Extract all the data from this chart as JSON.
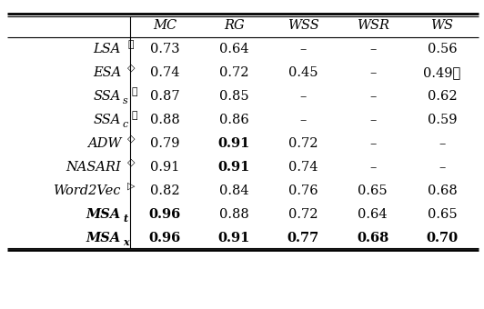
{
  "col_headers": [
    "",
    "MC",
    "RG",
    "WSS",
    "WSR",
    "WS"
  ],
  "rows": [
    {
      "label_base": "LSA",
      "label_sup": "⋆",
      "label_sub": "",
      "label_bold": false,
      "values": [
        "0.73",
        "0.64",
        "–",
        "–",
        "0.56"
      ],
      "val_bold": [
        false,
        false,
        false,
        false,
        false
      ]
    },
    {
      "label_base": "ESA",
      "label_sup": "◇",
      "label_sub": "",
      "label_bold": false,
      "values": [
        "0.74",
        "0.72",
        "0.45",
        "–",
        "0.49⋆"
      ],
      "val_bold": [
        false,
        false,
        false,
        false,
        false
      ]
    },
    {
      "label_base": "SSA",
      "label_sup": "⋆",
      "label_sub": "s",
      "label_bold": false,
      "values": [
        "0.87",
        "0.85",
        "–",
        "–",
        "0.62"
      ],
      "val_bold": [
        false,
        false,
        false,
        false,
        false
      ]
    },
    {
      "label_base": "SSA",
      "label_sup": "⋆",
      "label_sub": "c",
      "label_bold": false,
      "values": [
        "0.88",
        "0.86",
        "–",
        "–",
        "0.59"
      ],
      "val_bold": [
        false,
        false,
        false,
        false,
        false
      ]
    },
    {
      "label_base": "ADW",
      "label_sup": "◇",
      "label_sub": "",
      "label_bold": false,
      "values": [
        "0.79",
        "0.91",
        "0.72",
        "–",
        "–"
      ],
      "val_bold": [
        false,
        true,
        false,
        false,
        false
      ]
    },
    {
      "label_base": "NASARI",
      "label_sup": "◇",
      "label_sub": "",
      "label_bold": false,
      "values": [
        "0.91",
        "0.91",
        "0.74",
        "–",
        "–"
      ],
      "val_bold": [
        false,
        true,
        false,
        false,
        false
      ]
    },
    {
      "label_base": "Word2Vec",
      "label_sup": "▷",
      "label_sub": "",
      "label_bold": false,
      "values": [
        "0.82",
        "0.84",
        "0.76",
        "0.65",
        "0.68"
      ],
      "val_bold": [
        false,
        false,
        false,
        false,
        false
      ]
    },
    {
      "label_base": "MSA",
      "label_sup": "",
      "label_sub": "t",
      "label_bold": true,
      "values": [
        "0.96",
        "0.88",
        "0.72",
        "0.64",
        "0.65"
      ],
      "val_bold": [
        true,
        false,
        false,
        false,
        false
      ]
    },
    {
      "label_base": "MSA",
      "label_sup": "",
      "label_sub": "x",
      "label_bold": true,
      "values": [
        "0.96",
        "0.91",
        "0.77",
        "0.68",
        "0.70"
      ],
      "val_bold": [
        true,
        true,
        true,
        true,
        true
      ]
    }
  ],
  "font_size": 10.5,
  "background_color": "#ffffff"
}
